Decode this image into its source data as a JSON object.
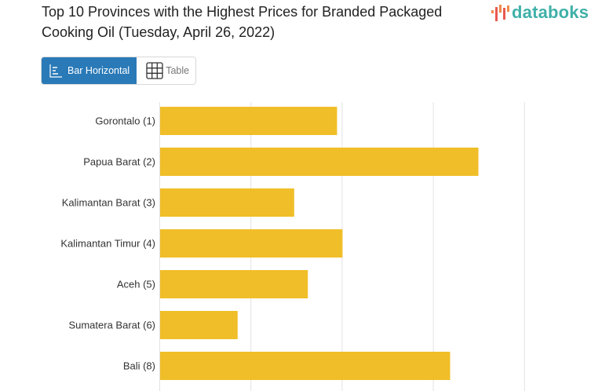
{
  "header": {
    "title": "Top 10 Provinces with the Highest Prices for Branded Packaged Cooking Oil (Tuesday, April 26, 2022)",
    "logo_text": "databoks"
  },
  "view_toggle": {
    "bar_label": "Bar Horizontal",
    "table_label": "Table",
    "active": "Bar Horizontal",
    "active_color": "#2a7ab8"
  },
  "chart_data": {
    "type": "bar",
    "orientation": "horizontal",
    "categories": [
      "Gorontalo (1)",
      "Papua Barat (2)",
      "Kalimantan Barat (3)",
      "Kalimantan Timur (4)",
      "Aceh (5)",
      "Sumatera Barat (6)",
      "Bali (8)"
    ],
    "values": [
      1.94,
      3.49,
      1.47,
      2.0,
      1.62,
      0.85,
      3.18
    ],
    "xlim": [
      0,
      4
    ],
    "grid": true,
    "bar_color": "#f0be28",
    "title": "",
    "xlabel": "",
    "ylabel": ""
  }
}
